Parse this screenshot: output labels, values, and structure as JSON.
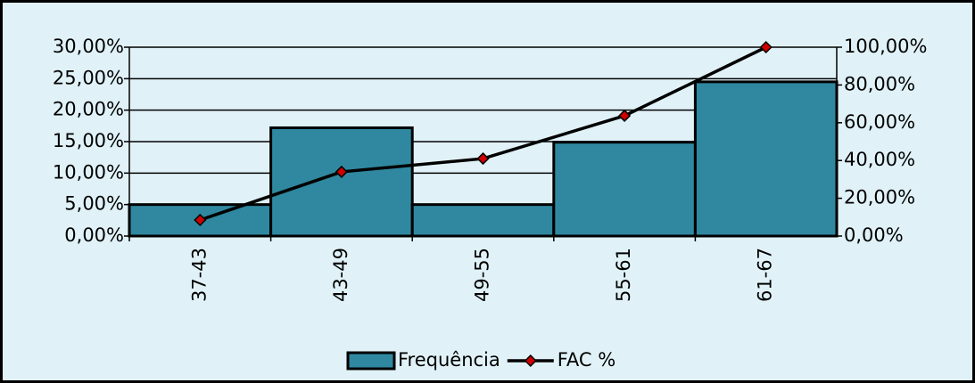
{
  "chart_data": {
    "type": "bar",
    "categories": [
      "37-43",
      "43-49",
      "49-55",
      "55-61",
      "61-67"
    ],
    "series": [
      {
        "name": "Frequência",
        "type": "bar",
        "color": "#2f88a0",
        "values": [
          5,
          17.2,
          5,
          14.9,
          24.5
        ]
      },
      {
        "name": "FAC %",
        "type": "line",
        "axis": "y2",
        "color": "#000000",
        "marker_color": "#cc0000",
        "values": [
          8.5,
          34,
          41,
          63.7,
          100
        ]
      }
    ],
    "ylim": [
      0,
      30
    ],
    "yticks": [
      {
        "value": 0,
        "label": "0,00%"
      },
      {
        "value": 5,
        "label": "5,00%"
      },
      {
        "value": 10,
        "label": "10,00%"
      },
      {
        "value": 15,
        "label": "15,00%"
      },
      {
        "value": 20,
        "label": "20,00%"
      },
      {
        "value": 25,
        "label": "25,00%"
      },
      {
        "value": 30,
        "label": "30,00%"
      }
    ],
    "y2lim": [
      0,
      100
    ],
    "y2ticks": [
      {
        "value": 0,
        "label": "0,00%"
      },
      {
        "value": 20,
        "label": "20,00%"
      },
      {
        "value": 40,
        "label": "40,00%"
      },
      {
        "value": 60,
        "label": "60,00%"
      },
      {
        "value": 80,
        "label": "80,00%"
      },
      {
        "value": 100,
        "label": "100,00%"
      }
    ],
    "grid": true,
    "legend": "bottom"
  }
}
